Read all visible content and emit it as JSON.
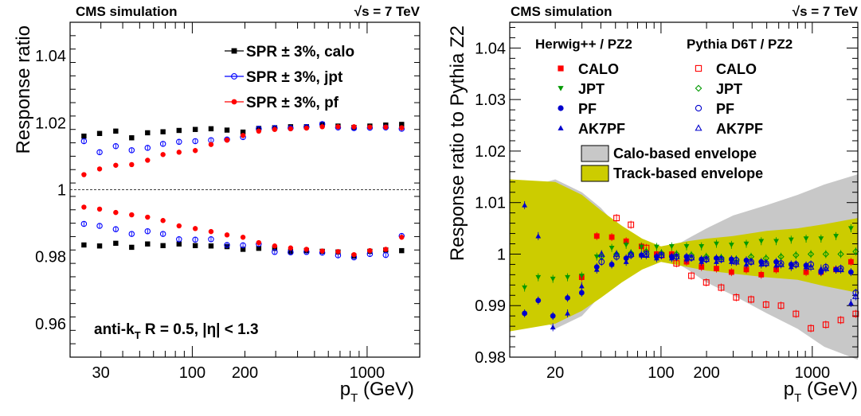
{
  "chart_data": [
    {
      "type": "scatter",
      "header_left": "CMS simulation",
      "header_right": "√s = 7 TeV",
      "xlabel": "p_T (GeV)",
      "ylabel": "Response ratio",
      "xscale": "log",
      "xlim": [
        20,
        2000
      ],
      "ylim": [
        0.95,
        1.05
      ],
      "xticks": [
        30,
        100,
        200,
        1000
      ],
      "xtick_labels": [
        "30",
        "100",
        "200",
        "1000"
      ],
      "yticks": [
        0.96,
        0.98,
        1,
        1.02,
        1.04
      ],
      "ytick_labels": [
        "0.96",
        "0.98",
        "1",
        "1.02",
        "1.04"
      ],
      "reference_line": 1,
      "annotation": "anti-k_T R = 0.5, |η| < 1.3",
      "legend_position": "top-right",
      "x": [
        24,
        29.5,
        36.5,
        45,
        55.5,
        68,
        84,
        104,
        128,
        158,
        195,
        240,
        296,
        365,
        450,
        554,
        682,
        841,
        1037,
        1278,
        1576
      ],
      "series": [
        {
          "name": "SPR ± 3%, calo",
          "color": "#000000",
          "marker": "square-filled",
          "values": [
            1.016,
            1.0168,
            1.0175,
            1.0155,
            1.017,
            1.0173,
            1.0177,
            1.018,
            1.0182,
            1.0178,
            1.0172,
            1.0183,
            1.0185,
            1.0188,
            1.0188,
            1.0195,
            1.019,
            1.0186,
            1.019,
            1.0193,
            1.0195
          ]
        },
        {
          "name": "SPR ± 3%, calo",
          "color": "#000000",
          "marker": "square-filled",
          "values": [
            0.9835,
            0.9832,
            0.984,
            0.9828,
            0.9838,
            0.9833,
            0.9838,
            0.9833,
            0.9832,
            0.983,
            0.9822,
            0.9825,
            0.9825,
            0.9815,
            0.9818,
            0.9816,
            0.9814,
            0.9802,
            0.9816,
            0.982,
            0.9818
          ]
        },
        {
          "name": "SPR ± 3%, jpt",
          "color": "#0000ff",
          "marker": "circle-open",
          "values": [
            1.0145,
            1.0112,
            1.013,
            1.0118,
            1.0125,
            1.0137,
            1.0143,
            1.0145,
            1.0148,
            1.015,
            1.0157,
            1.0182,
            1.0184,
            1.0184,
            1.0187,
            1.0196,
            1.0186,
            1.0184,
            1.0185,
            1.0186,
            1.0182
          ]
        },
        {
          "name": "SPR ± 3%, jpt",
          "color": "#0000ff",
          "marker": "circle-open",
          "values": [
            0.9898,
            0.9892,
            0.9882,
            0.9868,
            0.9876,
            0.9868,
            0.9852,
            0.9851,
            0.9852,
            0.9835,
            0.9834,
            0.9838,
            0.9814,
            0.9813,
            0.9814,
            0.9812,
            0.9804,
            0.9798,
            0.9808,
            0.9805,
            0.9862
          ]
        },
        {
          "name": "SPR ± 3%, pf",
          "color": "#ff0000",
          "marker": "circle-filled",
          "values": [
            1.0045,
            1.0062,
            1.0073,
            1.0075,
            1.0088,
            1.0105,
            1.0112,
            1.0117,
            1.0135,
            1.0148,
            1.0162,
            1.0175,
            1.018,
            1.0182,
            1.0184,
            1.0188,
            1.0188,
            1.0188,
            1.0187,
            1.0187,
            1.0185
          ]
        },
        {
          "name": "SPR ± 3%, pf",
          "color": "#ff0000",
          "marker": "circle-filled",
          "values": [
            0.9948,
            0.9942,
            0.9932,
            0.9925,
            0.9918,
            0.9908,
            0.9892,
            0.9884,
            0.9875,
            0.9865,
            0.9858,
            0.9842,
            0.9832,
            0.9826,
            0.9822,
            0.9817,
            0.9815,
            0.9806,
            0.9818,
            0.9822,
            0.9858
          ]
        }
      ]
    },
    {
      "type": "scatter",
      "header_left": "CMS simulation",
      "header_right": "√s = 7 TeV",
      "xlabel": "p_T (GeV)",
      "ylabel": "Response ratio to Pythia Z2",
      "xscale": "log",
      "xlim": [
        10,
        2000
      ],
      "ylim": [
        0.98,
        1.045
      ],
      "xticks": [
        20,
        100,
        200,
        1000
      ],
      "xtick_labels": [
        "20",
        "100",
        "200",
        "1000"
      ],
      "yticks": [
        0.98,
        0.99,
        1,
        1.01,
        1.02,
        1.03,
        1.04
      ],
      "ytick_labels": [
        "0.98",
        "0.99",
        "1",
        "1.01",
        "1.02",
        "1.03",
        "1.04"
      ],
      "legend_position": "top",
      "legend_column_headers": [
        "Herwig++ / PZ2",
        "Pythia D6T / PZ2"
      ],
      "envelopes": [
        {
          "name": "Calo-based envelope",
          "color": "#c8c8c8",
          "x": [
            10,
            20,
            30,
            40,
            55,
            75,
            100,
            150,
            200,
            300,
            500,
            800,
            1200,
            2000
          ],
          "upper": [
            1.012,
            1.0145,
            1.012,
            1.009,
            1.0045,
            1.0015,
            1.0,
            1.003,
            1.005,
            1.0075,
            1.0095,
            1.0115,
            1.0135,
            1.0155
          ],
          "lower": [
            0.992,
            0.9855,
            0.988,
            0.992,
            0.996,
            0.9985,
            1.0,
            0.997,
            0.9945,
            0.992,
            0.9885,
            0.9855,
            0.982,
            0.9795
          ]
        },
        {
          "name": "Track-based envelope",
          "color": "#cccc00",
          "x": [
            10,
            20,
            30,
            40,
            55,
            75,
            100,
            150,
            200,
            300,
            500,
            800,
            1200,
            2000
          ],
          "upper": [
            1.0145,
            1.014,
            1.0115,
            1.0085,
            1.0055,
            1.003,
            1.0015,
            1.0025,
            1.003,
            1.0035,
            1.0045,
            1.005,
            1.0058,
            1.007
          ],
          "lower": [
            0.985,
            0.9865,
            0.989,
            0.9915,
            0.9945,
            0.997,
            0.9985,
            0.9975,
            0.9968,
            0.9962,
            0.9955,
            0.995,
            0.9938,
            0.9925
          ]
        }
      ],
      "x": [
        13,
        16,
        20,
        25,
        31,
        39,
        49,
        61,
        77,
        97,
        122,
        153,
        192,
        241,
        303,
        380,
        477,
        599,
        752,
        944,
        1185,
        1488,
        1868
      ],
      "series": [
        {
          "name": "CALO",
          "group": "Herwig++ / PZ2",
          "color": "#ff0000",
          "marker": "square-filled",
          "values": [
            null,
            null,
            null,
            null,
            0.9955,
            1.0035,
            1.0033,
            1.0025,
            1.0015,
            1.0,
            1.0,
            0.9985,
            0.9975,
            0.9972,
            0.9965,
            0.997,
            0.996,
            0.997,
            null,
            0.9965,
            0.9965,
            0.997,
            0.9985
          ]
        },
        {
          "name": "CALO",
          "group": "Pythia D6T / PZ2",
          "color": "#ff0000",
          "marker": "square-open",
          "values": [
            null,
            null,
            null,
            null,
            null,
            null,
            1.007,
            1.0057,
            1.0012,
            0.9998,
            0.9982,
            0.9958,
            0.9945,
            0.9935,
            0.9916,
            0.9912,
            0.9902,
            0.99,
            0.9884,
            0.9856,
            0.9863,
            0.9872,
            0.9884
          ]
        },
        {
          "name": "JPT",
          "group": "Herwig++ / PZ2",
          "color": "#009900",
          "marker": "triangle-down-filled",
          "values": [
            0.9935,
            0.9955,
            0.9952,
            0.9955,
            0.9958,
            0.9995,
            1.0012,
            1.0018,
            1.0014,
            1.0014,
            1.0015,
            1.0015,
            1.0015,
            1.002,
            1.0018,
            1.002,
            1.0025,
            1.0025,
            1.0028,
            1.003,
            1.003,
            1.0035,
            1.005
          ]
        },
        {
          "name": "JPT",
          "group": "Pythia D6T / PZ2",
          "color": "#009900",
          "marker": "diamond-open",
          "values": [
            null,
            null,
            null,
            null,
            null,
            0.9995,
            1.0,
            1.0002,
            1.0005,
            1.0002,
            1.0,
            0.9998,
            0.9995,
            0.9993,
            0.999,
            0.9995,
            0.9992,
            0.9995,
            0.9998,
            1.0,
            1.0,
            1.0,
            1.0005
          ]
        },
        {
          "name": "PF",
          "group": "Herwig++ / PZ2",
          "color": "#0000cc",
          "marker": "circle-filled",
          "values": [
            0.9885,
            0.991,
            0.988,
            0.9915,
            0.9925,
            0.9975,
            0.998,
            0.9992,
            0.9998,
            0.9995,
            0.9995,
            0.9995,
            0.999,
            0.9992,
            0.999,
            0.9988,
            0.9985,
            0.9985,
            0.998,
            0.9978,
            0.9965,
            0.997,
            0.9965
          ]
        },
        {
          "name": "PF",
          "group": "Pythia D6T / PZ2",
          "color": "#0000cc",
          "marker": "circle-open",
          "values": [
            null,
            null,
            null,
            null,
            null,
            0.9985,
            0.9995,
            0.9998,
            1.0,
            0.9998,
            0.9995,
            0.9993,
            0.999,
            0.999,
            0.9988,
            0.9985,
            0.9982,
            0.9982,
            0.998,
            0.998,
            0.9975,
            0.9972,
            0.9925
          ]
        },
        {
          "name": "AK7PF",
          "group": "Herwig++ / PZ2",
          "color": "#0000cc",
          "marker": "triangle-up-filled",
          "values": [
            1.0095,
            1.0035,
            0.9858,
            0.9885,
            0.9938,
            0.997,
            0.998,
            0.9985,
            0.9998,
            0.9992,
            0.9992,
            0.999,
            0.9985,
            0.9985,
            0.9985,
            0.998,
            0.998,
            0.9978,
            0.9975,
            0.9975,
            0.9972,
            0.997,
            0.9905
          ]
        },
        {
          "name": "AK7PF",
          "group": "Pythia D6T / PZ2",
          "color": "#0000cc",
          "marker": "triangle-up-open",
          "values": [
            null,
            null,
            null,
            null,
            null,
            1.0,
            1.0,
            1.0,
            0.9998,
            0.9998,
            0.9995,
            0.9993,
            0.999,
            0.999,
            0.9985,
            0.9985,
            0.9982,
            0.998,
            0.998,
            0.9975,
            0.9972,
            0.997,
            0.9918
          ]
        }
      ]
    }
  ]
}
